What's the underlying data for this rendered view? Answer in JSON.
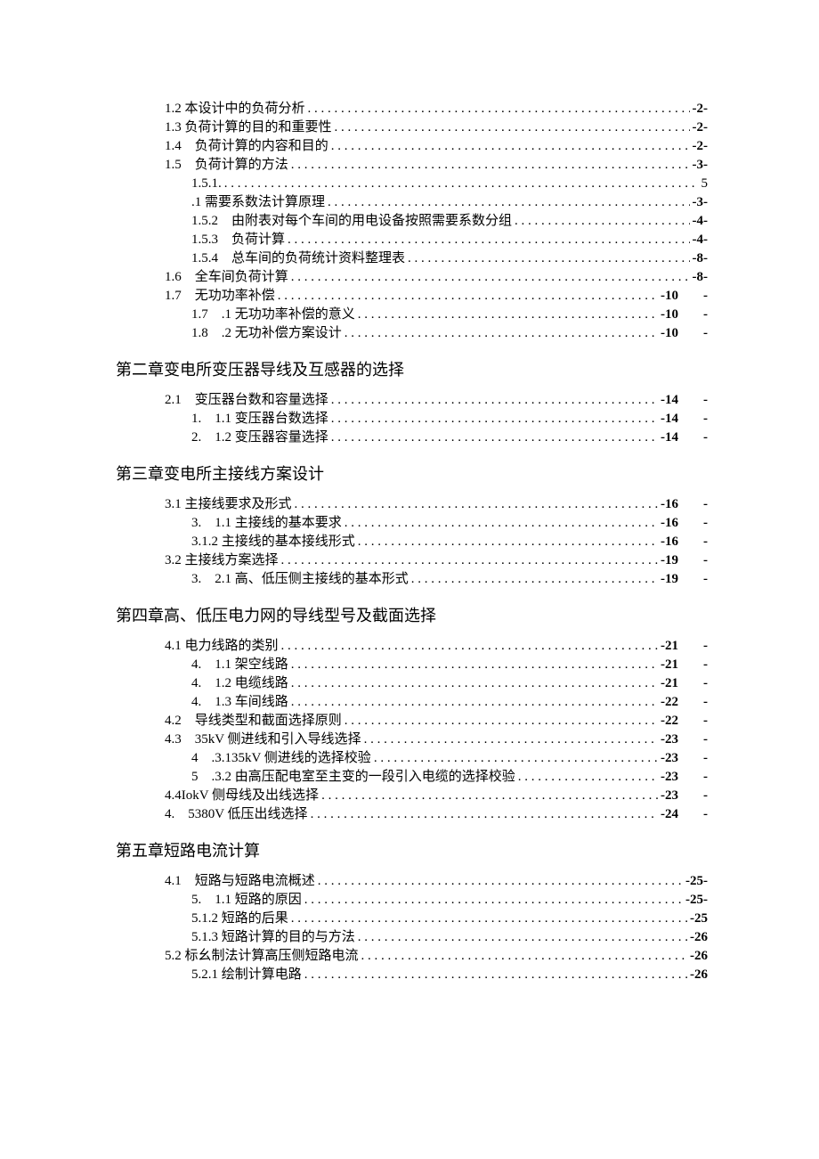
{
  "toc": {
    "text_color": "#000000",
    "background_color": "#ffffff",
    "body_fontsize": 15,
    "heading_fontsize": 18,
    "font_family": "SimSun",
    "sections": [
      {
        "type": "entries",
        "items": [
          {
            "level": 1,
            "label": "1.2 本设计中的负荷分析",
            "page": "-2-",
            "dash": false
          },
          {
            "level": 1,
            "label": "1.3 负荷计算的目的和重要性",
            "page": "-2-",
            "dash": false
          },
          {
            "level": 1,
            "label": "1.4　负荷计算的内容和目的",
            "page": "-2-",
            "dash": false
          },
          {
            "level": 1,
            "label": "1.5　负荷计算的方法",
            "page": "-3-",
            "dash": false
          },
          {
            "level": 2,
            "label": "1.5.1.",
            "page": "5",
            "dash": false,
            "plain_page": true
          },
          {
            "level": 2,
            "label": ".1 需要系数法计算原理",
            "page": "-3-",
            "dash": false
          },
          {
            "level": 2,
            "label": "1.5.2　由附表对每个车间的用电设备按照需要系数分组",
            "page": "-4-",
            "dash": false
          },
          {
            "level": 2,
            "label": "1.5.3　负荷计算",
            "page": "-4-",
            "dash": false
          },
          {
            "level": 2,
            "label": "1.5.4　总车间的负荷统计资料整理表",
            "page": "-8-",
            "dash": false
          },
          {
            "level": 1,
            "label": "1.6　全车间负荷计算",
            "page": "-8-",
            "dash": false
          },
          {
            "level": 1,
            "label": "1.7　无功功率补偿",
            "page": "-10",
            "dash": true
          },
          {
            "level": 2,
            "label": "1.7　.1 无功功率补偿的意义",
            "page": "-10",
            "dash": true
          },
          {
            "level": 2,
            "label": "1.8　.2 无功补偿方案设计",
            "page": "-10",
            "dash": true
          }
        ]
      },
      {
        "type": "heading",
        "text": "第二章变电所变压器导线及互感器的选择"
      },
      {
        "type": "entries",
        "items": [
          {
            "level": 1,
            "label": "2.1　变压器台数和容量选择",
            "page": "-14",
            "dash": true
          },
          {
            "level": 2,
            "label": "1.　1.1 变压器台数选择",
            "page": "-14",
            "dash": true
          },
          {
            "level": 2,
            "label": "2.　1.2 变压器容量选择",
            "page": "-14",
            "dash": true
          }
        ]
      },
      {
        "type": "heading",
        "text": "第三章变电所主接线方案设计"
      },
      {
        "type": "entries",
        "items": [
          {
            "level": 1,
            "label": "3.1 主接线要求及形式",
            "page": "-16",
            "dash": true
          },
          {
            "level": 2,
            "label": "3.　1.1 主接线的基本要求",
            "page": "-16",
            "dash": true
          },
          {
            "level": 2,
            "label": "3.1.2 主接线的基本接线形式",
            "page": "-16",
            "dash": true
          },
          {
            "level": 1,
            "label": "3.2 主接线方案选择",
            "page": "-19",
            "dash": true
          },
          {
            "level": 2,
            "label": "3.　2.1 高、低压侧主接线的基本形式",
            "page": "-19",
            "dash": true
          }
        ]
      },
      {
        "type": "heading",
        "text": "第四章高、低压电力网的导线型号及截面选择"
      },
      {
        "type": "entries",
        "items": [
          {
            "level": 1,
            "label": "4.1 电力线路的类别",
            "page": "-21",
            "dash": true
          },
          {
            "level": 2,
            "label": "4.　1.1 架空线路",
            "page": "-21",
            "dash": true
          },
          {
            "level": 2,
            "label": "4.　1.2 电缆线路",
            "page": "-21",
            "dash": true
          },
          {
            "level": 2,
            "label": "4.　1.3 车间线路",
            "page": "-22",
            "dash": true
          },
          {
            "level": 1,
            "label": "4.2　导线类型和截面选择原则",
            "page": "-22",
            "dash": true
          },
          {
            "level": 1,
            "label": "4.3　35kV 侧进线和引入导线选择",
            "page": "-23",
            "dash": true
          },
          {
            "level": 2,
            "label": "4　.3.135kV 侧进线的选择校验",
            "page": "-23",
            "dash": true
          },
          {
            "level": 2,
            "label": "5　.3.2 由高压配电室至主变的一段引入电缆的选择校验",
            "page": "-23",
            "dash": true
          },
          {
            "level": 1,
            "label": "4.4IokV 侧母线及出线选择",
            "page": "-23",
            "dash": true
          },
          {
            "level": 1,
            "label": "4.　5380V 低压出线选择",
            "page": "-24",
            "dash": true
          }
        ]
      },
      {
        "type": "heading",
        "text": "第五章短路电流计算"
      },
      {
        "type": "entries",
        "items": [
          {
            "level": 1,
            "label": "4.1　短路与短路电流概述",
            "page": "-25-",
            "dash": false
          },
          {
            "level": 2,
            "label": "5.　1.1 短路的原因",
            "page": "-25-",
            "dash": false
          },
          {
            "level": 2,
            "label": "5.1.2 短路的后果",
            "page": "-25",
            "dash": false
          },
          {
            "level": 2,
            "label": "5.1.3 短路计算的目的与方法",
            "page": "-26",
            "dash": false
          },
          {
            "level": 1,
            "label": "5.2 标幺制法计算高压侧短路电流",
            "page": "-26",
            "dash": false
          },
          {
            "level": 2,
            "label": "5.2.1 绘制计算电路",
            "page": "-26",
            "dash": false
          }
        ]
      }
    ]
  }
}
